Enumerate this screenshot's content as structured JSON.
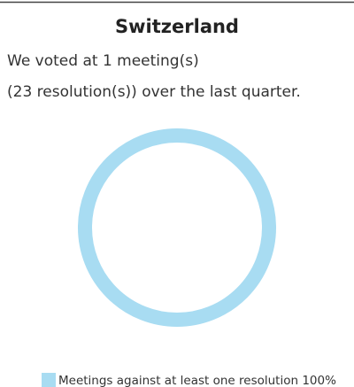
{
  "chart_data": {
    "type": "pie",
    "donut": true,
    "title": "Switzerland",
    "text_lines": [
      "We voted at 1 meeting(s)",
      "(23 resolution(s)) over the last quarter."
    ],
    "categories": [
      "Meetings against at least one resolution"
    ],
    "values": [
      100
    ],
    "value_labels": [
      "100%"
    ],
    "colors": [
      "#a8dcf2"
    ]
  }
}
